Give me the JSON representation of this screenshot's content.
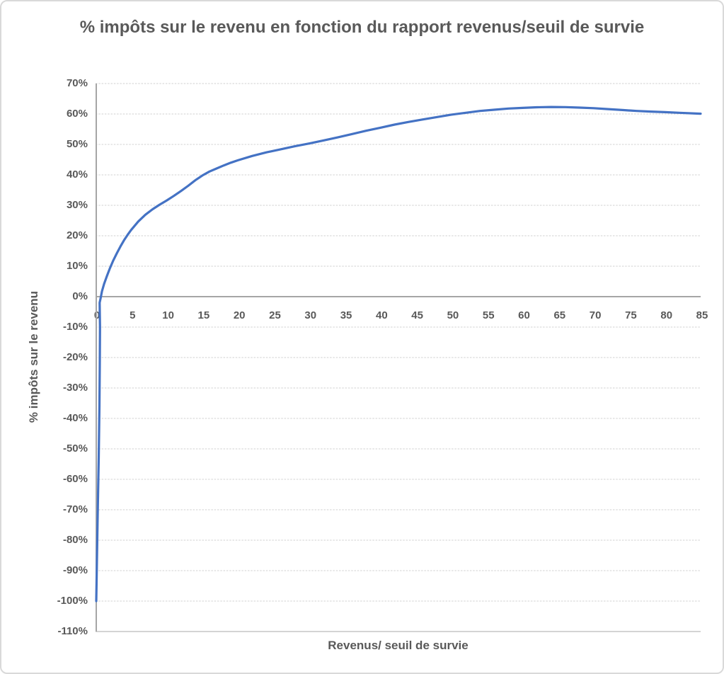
{
  "chart_data": {
    "type": "line",
    "title": "% impôts sur le revenu en fonction du rapport revenus/seuil de survie",
    "xlabel": "Revenus/ seuil de survie",
    "ylabel": "% impôts sur le revenu",
    "xlim": [
      0,
      85
    ],
    "ylim": [
      -110,
      70
    ],
    "x_tick_labels": [
      "0",
      "5",
      "10",
      "15",
      "20",
      "25",
      "30",
      "35",
      "40",
      "45",
      "50",
      "55",
      "60",
      "65",
      "70",
      "75",
      "80",
      "85"
    ],
    "y_tick_labels": [
      "70%",
      "60%",
      "50%",
      "40%",
      "30%",
      "20%",
      "10%",
      "0%",
      "-10%",
      "-20%",
      "-30%",
      "-40%",
      "-50%",
      "-60%",
      "-70%",
      "-80%",
      "-90%",
      "-100%",
      "-110%"
    ],
    "grid": true,
    "legend": false,
    "series": [
      {
        "name": "% impôts sur le revenu",
        "color": "#4472C4",
        "points": [
          [
            0.1,
            -100
          ],
          [
            0.2,
            -86
          ],
          [
            0.3,
            -72
          ],
          [
            0.45,
            -53
          ],
          [
            0.55,
            -36
          ],
          [
            0.6,
            -22
          ],
          [
            0.63,
            -10
          ],
          [
            0.58,
            -2
          ],
          [
            0.72,
            -0.5
          ],
          [
            0.9,
            1.8
          ],
          [
            1.2,
            4.2
          ],
          [
            1.6,
            6.8
          ],
          [
            2,
            9.2
          ],
          [
            2.5,
            11.9
          ],
          [
            3,
            14.3
          ],
          [
            3.5,
            16.5
          ],
          [
            4,
            18.5
          ],
          [
            4.5,
            20.3
          ],
          [
            5,
            21.9
          ],
          [
            6,
            24.7
          ],
          [
            7,
            26.9
          ],
          [
            8,
            28.7
          ],
          [
            9,
            30.2
          ],
          [
            10,
            31.6
          ],
          [
            11,
            33.1
          ],
          [
            12,
            34.7
          ],
          [
            13,
            36.4
          ],
          [
            14,
            38.2
          ],
          [
            15,
            39.8
          ],
          [
            16,
            41.1
          ],
          [
            17,
            42.1
          ],
          [
            18,
            43.1
          ],
          [
            19,
            44
          ],
          [
            20,
            44.8
          ],
          [
            22,
            46.2
          ],
          [
            24,
            47.4
          ],
          [
            26,
            48.4
          ],
          [
            28,
            49.4
          ],
          [
            30,
            50.3
          ],
          [
            32,
            51.3
          ],
          [
            34,
            52.3
          ],
          [
            36,
            53.4
          ],
          [
            38,
            54.5
          ],
          [
            40,
            55.5
          ],
          [
            42,
            56.5
          ],
          [
            44,
            57.4
          ],
          [
            46,
            58.2
          ],
          [
            48,
            59
          ],
          [
            50,
            59.8
          ],
          [
            52,
            60.4
          ],
          [
            54,
            61
          ],
          [
            56,
            61.4
          ],
          [
            58,
            61.8
          ],
          [
            60,
            62
          ],
          [
            62,
            62.2
          ],
          [
            64,
            62.3
          ],
          [
            66,
            62.25
          ],
          [
            68,
            62.1
          ],
          [
            70,
            61.9
          ],
          [
            72,
            61.6
          ],
          [
            74,
            61.3
          ],
          [
            76,
            61
          ],
          [
            78,
            60.8
          ],
          [
            80,
            60.6
          ],
          [
            82,
            60.4
          ],
          [
            85,
            60.1
          ]
        ]
      }
    ],
    "colors": {
      "line": "#4472C4",
      "gridline": "#d2d2d2",
      "axis_line": "#a6a6a6",
      "text": "#595959",
      "border": "#d9d9d9"
    }
  }
}
